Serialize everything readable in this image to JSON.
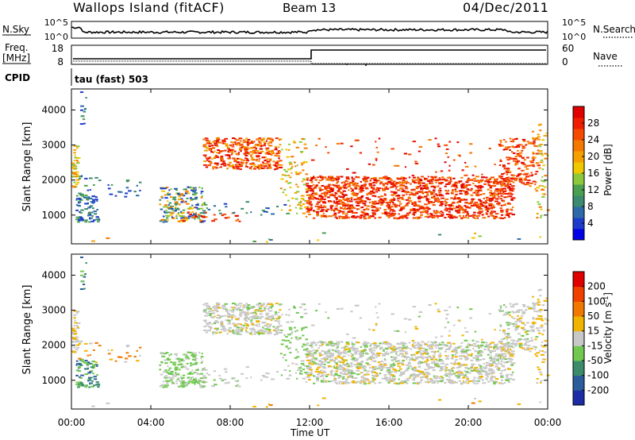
{
  "header": {
    "site": "Wallops Island (fitACF)",
    "beam": "Beam 13",
    "date": "04/Dec/2011"
  },
  "top_panels": {
    "nsky_label": "N.Sky",
    "nsky_ticks": [
      "10^5",
      "10^0"
    ],
    "nsearch_label": "N.Search",
    "nsearch_ticks": [
      "10^5",
      "10^0"
    ],
    "freq_label": "Freq.",
    "freq_unit": "[MHz]",
    "freq_ticks": [
      "18",
      "8"
    ],
    "nave_label": "Nave",
    "nave_ticks": [
      "60",
      "0"
    ],
    "cpid_label": "CPID",
    "cpid_value": "tau (fast) 503"
  },
  "chart_data": [
    {
      "type": "heatmap",
      "name": "power",
      "ylabel": "Slant Range [km]",
      "yticks": [
        "4000",
        "3000",
        "2000",
        "1000"
      ],
      "ylim": [
        180,
        4600
      ],
      "colorbar": {
        "label": "Power [dB]",
        "ticks": [
          "28",
          "24",
          "20",
          "16",
          "12",
          "8",
          "4"
        ],
        "colors": [
          "#0000e6",
          "#1e3ccc",
          "#2e6aa8",
          "#3c8a70",
          "#4aa050",
          "#8cc83c",
          "#f0c800",
          "#f5a000",
          "#f57800",
          "#f54b00",
          "#f01e00",
          "#e00000"
        ]
      }
    },
    {
      "type": "heatmap",
      "name": "velocity",
      "ylabel": "Slant Range [km]",
      "yticks": [
        "4000",
        "3000",
        "2000",
        "1000"
      ],
      "ylim": [
        180,
        4600
      ],
      "colorbar": {
        "label": "Velocity [m s-1]",
        "label_main": "Velocity [m s",
        "label_sup": "-1",
        "label_end": "]",
        "ticks": [
          "200",
          "100",
          "50",
          "15",
          "-15",
          "-50",
          "-100",
          "-200"
        ],
        "colors": [
          "#1c2ca6",
          "#2c5c9c",
          "#3c8c6c",
          "#70c850",
          "#c8c8c8",
          "#f0b400",
          "#f07800",
          "#f04000",
          "#e00000"
        ]
      },
      "xlabel": "Time UT",
      "xticks": [
        "00:00",
        "04:00",
        "08:00",
        "12:00",
        "16:00",
        "20:00",
        "00:00"
      ],
      "xlim": [
        0,
        24
      ]
    }
  ]
}
